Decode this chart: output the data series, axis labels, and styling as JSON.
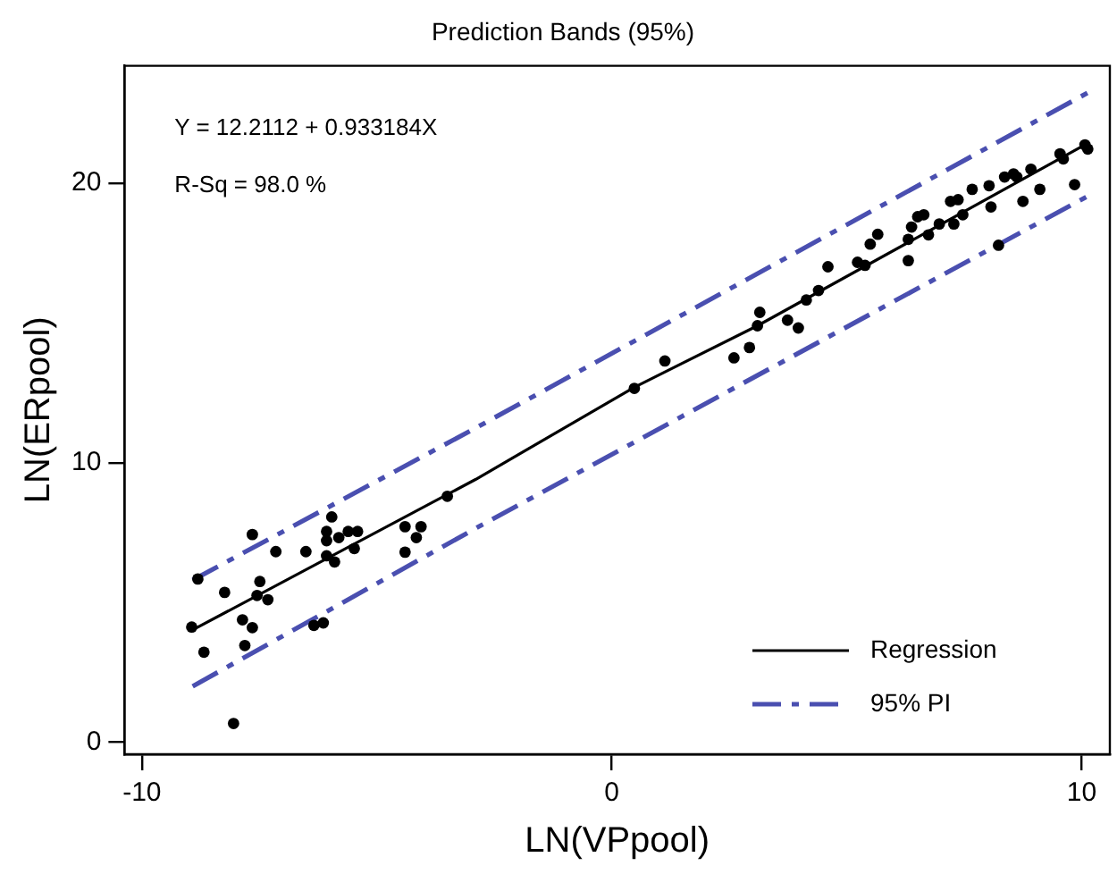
{
  "chart_data": {
    "type": "scatter",
    "title": "Prediction Bands (95%)",
    "xlabel": "LN(VPpool)",
    "ylabel": "LN(ERpool)",
    "annotations": [
      "Y = 12.2112 + 0.933184X",
      "R-Sq = 98.0 %"
    ],
    "xlim": [
      -10.37,
      10.6
    ],
    "ylim": [
      -0.43,
      24.2
    ],
    "xticks": [
      -10,
      0,
      10
    ],
    "yticks": [
      0,
      10,
      20
    ],
    "grid": false,
    "legend": "bottom right",
    "marker": "circle",
    "series": [
      {
        "color": "#000000",
        "x": [
          -8.81,
          -8.94,
          -8.68,
          -8.24,
          -7.65,
          -7.49,
          -7.55,
          -7.32,
          -7.86,
          -7.65,
          -7.81,
          -8.05,
          -7.15,
          -6.51,
          -5.96,
          -6.07,
          -6.07,
          -5.81,
          -5.61,
          -5.41,
          -6.07,
          -5.9,
          -5.48,
          -6.34,
          -6.14,
          -4.4,
          -4.06,
          -4.16,
          -4.4,
          -3.5,
          0.48,
          1.13,
          2.6,
          2.93,
          3.1,
          3.74,
          3.97,
          3.15,
          4.14,
          4.4,
          4.6,
          5.23,
          5.39,
          5.5,
          5.66,
          6.31,
          6.31,
          6.38,
          6.51,
          6.64,
          6.74,
          6.97,
          7.28,
          7.21,
          7.37,
          7.47,
          7.67,
          8.03,
          8.07,
          8.23,
          8.36,
          8.55,
          8.62,
          8.75,
          8.92,
          9.11,
          9.54,
          9.61,
          9.85,
          10.07,
          10.13
        ],
        "values": [
          5.84,
          4.12,
          3.22,
          5.36,
          7.43,
          5.75,
          5.25,
          5.1,
          4.38,
          4.1,
          3.46,
          0.67,
          6.82,
          6.82,
          8.06,
          7.54,
          7.21,
          7.32,
          7.54,
          7.54,
          6.67,
          6.45,
          6.93,
          4.18,
          4.27,
          7.71,
          7.71,
          7.32,
          6.8,
          8.8,
          12.66,
          13.64,
          13.75,
          14.12,
          14.9,
          15.1,
          14.82,
          15.38,
          15.82,
          16.16,
          17.01,
          17.17,
          17.06,
          17.82,
          18.17,
          17.99,
          17.23,
          18.43,
          18.8,
          18.87,
          18.15,
          18.54,
          18.54,
          19.35,
          19.41,
          18.87,
          19.78,
          19.91,
          19.15,
          17.78,
          20.22,
          20.33,
          20.22,
          19.35,
          20.5,
          19.78,
          21.05,
          20.87,
          19.95,
          21.37,
          21.22
        ]
      },
      {
        "type": "line",
        "name": "Regression",
        "color": "#000000",
        "line_style": "solid",
        "marker": "none",
        "x": [
          -8.94,
          -2.9,
          0.48,
          3.1,
          10.1
        ],
        "values": [
          4.0,
          9.4,
          12.7,
          14.9,
          21.4
        ]
      },
      {
        "type": "line",
        "name": "95% PI",
        "color": "#4a4fb0",
        "line_style": "dashed",
        "marker": "none",
        "x": [
          -8.92,
          -2.9,
          10.2
        ],
        "values": [
          5.8,
          11.24,
          23.3
        ]
      },
      {
        "type": "line",
        "color": "#4a4fb0",
        "line_style": "dashed",
        "marker": "none",
        "x": [
          -8.92,
          -2.9,
          10.2
        ],
        "values": [
          2.0,
          7.65,
          19.6
        ]
      }
    ]
  }
}
